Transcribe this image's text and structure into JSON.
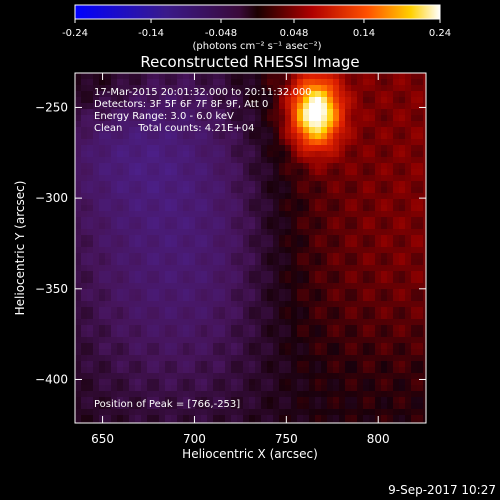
{
  "chart_data": {
    "type": "heatmap",
    "title": "Reconstructed RHESSI Image",
    "xlabel": "Heliocentric X (arcsec)",
    "ylabel": "Heliocentric Y (arcsec)",
    "xlim": [
      635,
      826
    ],
    "ylim": [
      -424,
      -231
    ],
    "x_ticks": [
      650,
      700,
      750,
      800
    ],
    "y_ticks": [
      -250,
      -300,
      -350,
      -400
    ],
    "colorbar": {
      "range": [
        -0.24,
        0.24
      ],
      "ticks": [
        "-0.24",
        "-0.14",
        "-0.048",
        "0.048",
        "0.14",
        "0.24"
      ],
      "tick_values": [
        -0.24,
        -0.14,
        -0.048,
        0.048,
        0.14,
        0.24
      ],
      "unit_label": "(photons cm⁻² s⁻¹ asec⁻²)",
      "colormap": "rainbow-to-red-yellow-white"
    },
    "annotations": [
      "17-Mar-2015 20:01:32.000 to 20:11:32.000",
      "Detectors: 3F 5F 6F 7F 8F 9F, Att 0",
      "Energy Range: 3.0 - 6.0 keV",
      "Clean     Total counts: 4.21E+04"
    ],
    "peak_text": "Position of Peak = [766,-253]",
    "peak": {
      "x": 766,
      "y": -253,
      "value": 0.24
    },
    "timestamp": "9-Sep-2017 10:27"
  }
}
